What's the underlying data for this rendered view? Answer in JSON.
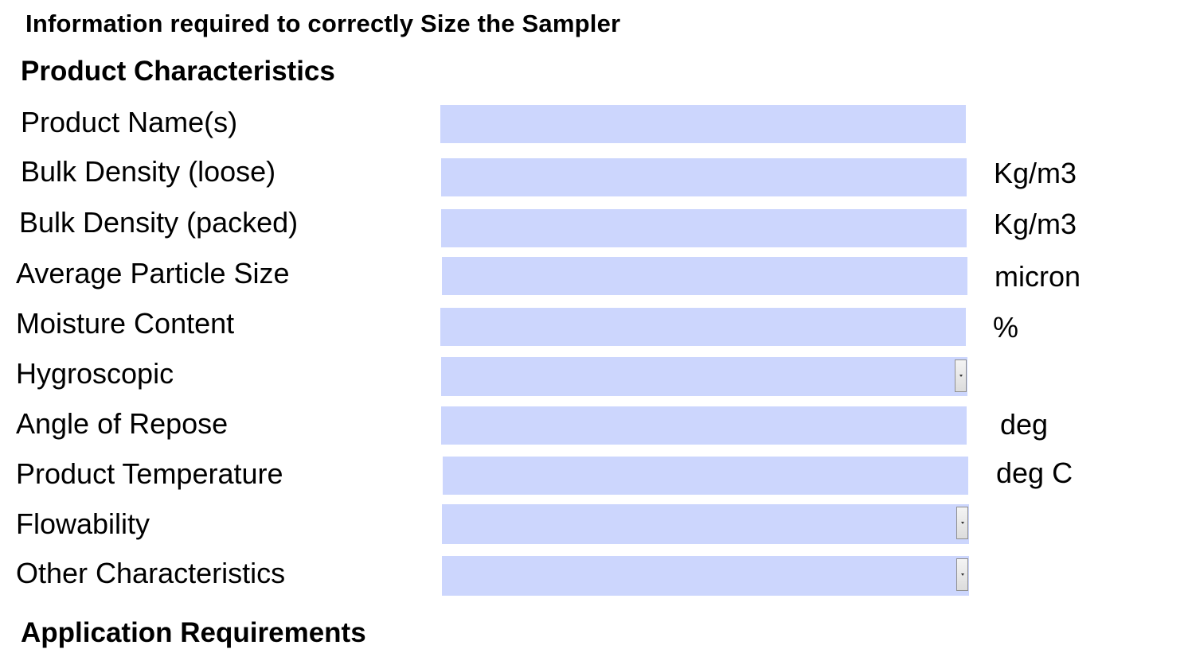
{
  "page": {
    "heading": "Information required to correctly Size the Sampler"
  },
  "product_characteristics": {
    "heading": "Product Characteristics",
    "fields": [
      {
        "label": "Product Name(s)",
        "value": "",
        "unit": ""
      },
      {
        "label": "Bulk Density (loose)",
        "value": "",
        "unit": "Kg/m3"
      },
      {
        "label": "Bulk Density (packed)",
        "value": "",
        "unit": "Kg/m3"
      },
      {
        "label": "Average Particle Size",
        "value": "",
        "unit": "micron"
      },
      {
        "label": "Moisture Content",
        "value": "",
        "unit": "%"
      },
      {
        "label": "Hygroscopic",
        "value": "",
        "unit": ""
      },
      {
        "label": "Angle of Repose",
        "value": "",
        "unit": "deg"
      },
      {
        "label": "Product Temperature",
        "value": "",
        "unit": "deg C"
      },
      {
        "label": "Flowability",
        "value": "",
        "unit": ""
      },
      {
        "label": "Other Characteristics",
        "value": "",
        "unit": ""
      }
    ]
  },
  "next_section": {
    "heading": "Application Requirements"
  },
  "colors": {
    "field_fill": "#ccd6fd",
    "text": "#000000",
    "background": "#ffffff"
  },
  "icons": {
    "dropdown": "chevron-down-icon"
  }
}
